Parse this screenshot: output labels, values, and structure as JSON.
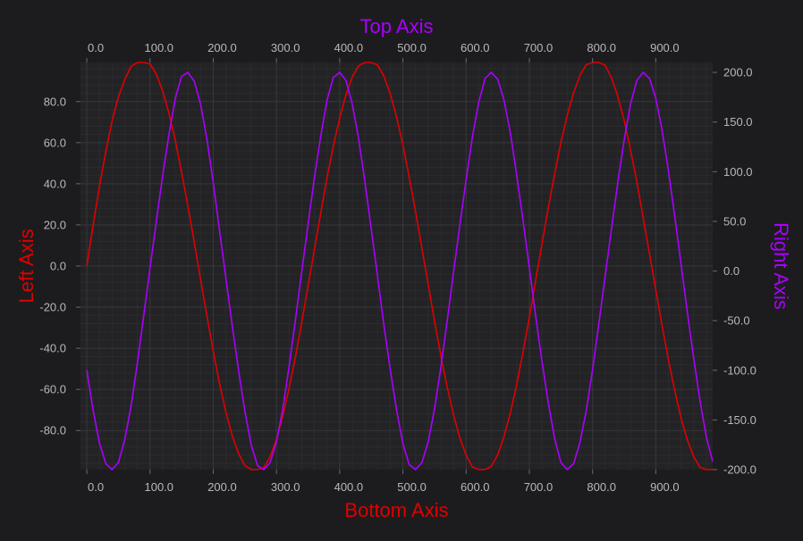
{
  "chart_data": {
    "type": "line",
    "title": "",
    "xlabel_bottom": "Bottom Axis",
    "xlabel_top": "Top Axis",
    "ylabel_left": "Left Axis",
    "ylabel_right": "Right Axis",
    "xlim_bottom": [
      -10,
      990
    ],
    "xlim_top": [
      -10,
      990
    ],
    "ylim_left": [
      -99,
      99
    ],
    "ylim_right": [
      -200,
      210
    ],
    "ticks_bottom": [
      0,
      100,
      200,
      300,
      400,
      500,
      600,
      700,
      800,
      900
    ],
    "ticks_top": [
      0,
      100,
      200,
      300,
      400,
      500,
      600,
      700,
      800,
      900
    ],
    "ticks_left": [
      -80,
      -60,
      -40,
      -20,
      0,
      20,
      40,
      60,
      80
    ],
    "ticks_right": [
      -200,
      -150,
      -100,
      -50,
      0,
      50,
      100,
      150,
      200
    ],
    "tick_labels_bottom": [
      "0.0",
      "100.0",
      "200.0",
      "300.0",
      "400.0",
      "500.0",
      "600.0",
      "700.0",
      "800.0",
      "900.0"
    ],
    "tick_labels_top": [
      "0.0",
      "100.0",
      "200.0",
      "300.0",
      "400.0",
      "500.0",
      "600.0",
      "700.0",
      "800.0",
      "900.0"
    ],
    "tick_labels_left": [
      "-80.0",
      "-60.0",
      "-40.0",
      "-20.0",
      "0.0",
      "20.0",
      "40.0",
      "60.0",
      "80.0"
    ],
    "tick_labels_right": [
      "-200.0",
      "-150.0",
      "-100.0",
      "-50.0",
      "0.0",
      "50.0",
      "100.0",
      "150.0",
      "200.0"
    ],
    "grid": true,
    "legend": "none",
    "series": [
      {
        "axes": "bottom-left",
        "color": "#e00000",
        "x": [
          0,
          10,
          20,
          30,
          40,
          50,
          60,
          70,
          80,
          90,
          100,
          110,
          120,
          130,
          140,
          150,
          160,
          170,
          180,
          190,
          200,
          210,
          220,
          230,
          240,
          250,
          260,
          270,
          280,
          290,
          300,
          310,
          320,
          330,
          340,
          350,
          360,
          370,
          380,
          390,
          400,
          410,
          420,
          430,
          440,
          450,
          460,
          470,
          480,
          490,
          500,
          510,
          520,
          530,
          540,
          550,
          560,
          570,
          580,
          590,
          600,
          610,
          620,
          630,
          640,
          650,
          660,
          670,
          680,
          690,
          700,
          710,
          720,
          730,
          740,
          750,
          760,
          770,
          780,
          790,
          800,
          810,
          820,
          830,
          840,
          850,
          860,
          870,
          880,
          890,
          900,
          910,
          920,
          930,
          940,
          950,
          960,
          970,
          980,
          990
        ],
        "y": [
          0,
          19.8,
          38.7,
          55.6,
          70.4,
          82.3,
          90.7,
          97.1,
          99,
          99,
          98.3,
          93.4,
          85.1,
          74.3,
          61.1,
          45.6,
          29.1,
          11.4,
          -6.5,
          -24.3,
          -41.4,
          -57.2,
          -71,
          -82.5,
          -91.2,
          -97,
          -99,
          -99,
          -98.1,
          -92.7,
          -84.3,
          -73.1,
          -59.5,
          -44.1,
          -27.4,
          -9.7,
          8,
          25.8,
          42.9,
          58.3,
          72,
          83.3,
          92,
          97.4,
          99,
          99,
          97.8,
          92.3,
          83.8,
          72.5,
          58.9,
          43.3,
          26.5,
          8.8,
          -9,
          -26.6,
          -43.5,
          -58.9,
          -72.3,
          -83.4,
          -92,
          -97.7,
          -99,
          -99,
          -97.4,
          -91.8,
          -82.9,
          -71.4,
          -57.6,
          -41.9,
          -24.9,
          -7.1,
          10.8,
          28.3,
          44.8,
          60.2,
          73.4,
          84.3,
          92.7,
          97.9,
          99,
          99,
          97.6,
          91.5,
          82.5,
          70.8,
          56.7,
          40.9,
          23.7,
          6.1,
          -11.6,
          -29,
          -45.5,
          -60.6,
          -73.9,
          -84.7,
          -92.7,
          -97.9,
          -99,
          -99
        ]
      },
      {
        "axes": "top-right",
        "color": "#aa00ff",
        "x": [
          0,
          10,
          20,
          30,
          40,
          50,
          60,
          70,
          80,
          90,
          100,
          110,
          120,
          130,
          140,
          150,
          160,
          170,
          180,
          190,
          200,
          210,
          220,
          230,
          240,
          250,
          260,
          270,
          280,
          290,
          300,
          310,
          320,
          330,
          340,
          350,
          360,
          370,
          380,
          390,
          400,
          410,
          420,
          430,
          440,
          450,
          460,
          470,
          480,
          490,
          500,
          510,
          520,
          530,
          540,
          550,
          560,
          570,
          580,
          590,
          600,
          610,
          620,
          630,
          640,
          650,
          660,
          670,
          680,
          690,
          700,
          710,
          720,
          730,
          740,
          750,
          760,
          770,
          780,
          790,
          800,
          810,
          820,
          830,
          840,
          850,
          860,
          870,
          880,
          890,
          900,
          910,
          920,
          930,
          940,
          950,
          960,
          970,
          980,
          990
        ],
        "y": [
          -100,
          -140,
          -173,
          -194,
          -200,
          -193,
          -170,
          -136,
          -93,
          -45,
          3,
          50,
          96,
          138,
          174,
          196,
          200,
          191,
          168,
          133,
          89,
          41,
          -7,
          -55,
          -100,
          -141,
          -175,
          -196,
          -200,
          -193,
          -172,
          -139,
          -96,
          -49,
          -1,
          47,
          94,
          136,
          172,
          195,
          200,
          192,
          168,
          133,
          89,
          42,
          -6,
          -55,
          -99,
          -140,
          -174,
          -195,
          -200,
          -193,
          -172,
          -139,
          -97,
          -50,
          -2,
          46,
          92,
          135,
          170,
          194,
          200,
          193,
          172,
          139,
          97,
          51,
          3,
          -45,
          -91,
          -133,
          -169,
          -193,
          -200,
          -194,
          -173,
          -141,
          -99,
          -53,
          -5,
          43,
          89,
          132,
          168,
          192,
          200,
          194,
          174,
          142,
          101,
          55,
          7,
          -42,
          -88,
          -131,
          -167,
          -192
        ]
      }
    ]
  }
}
